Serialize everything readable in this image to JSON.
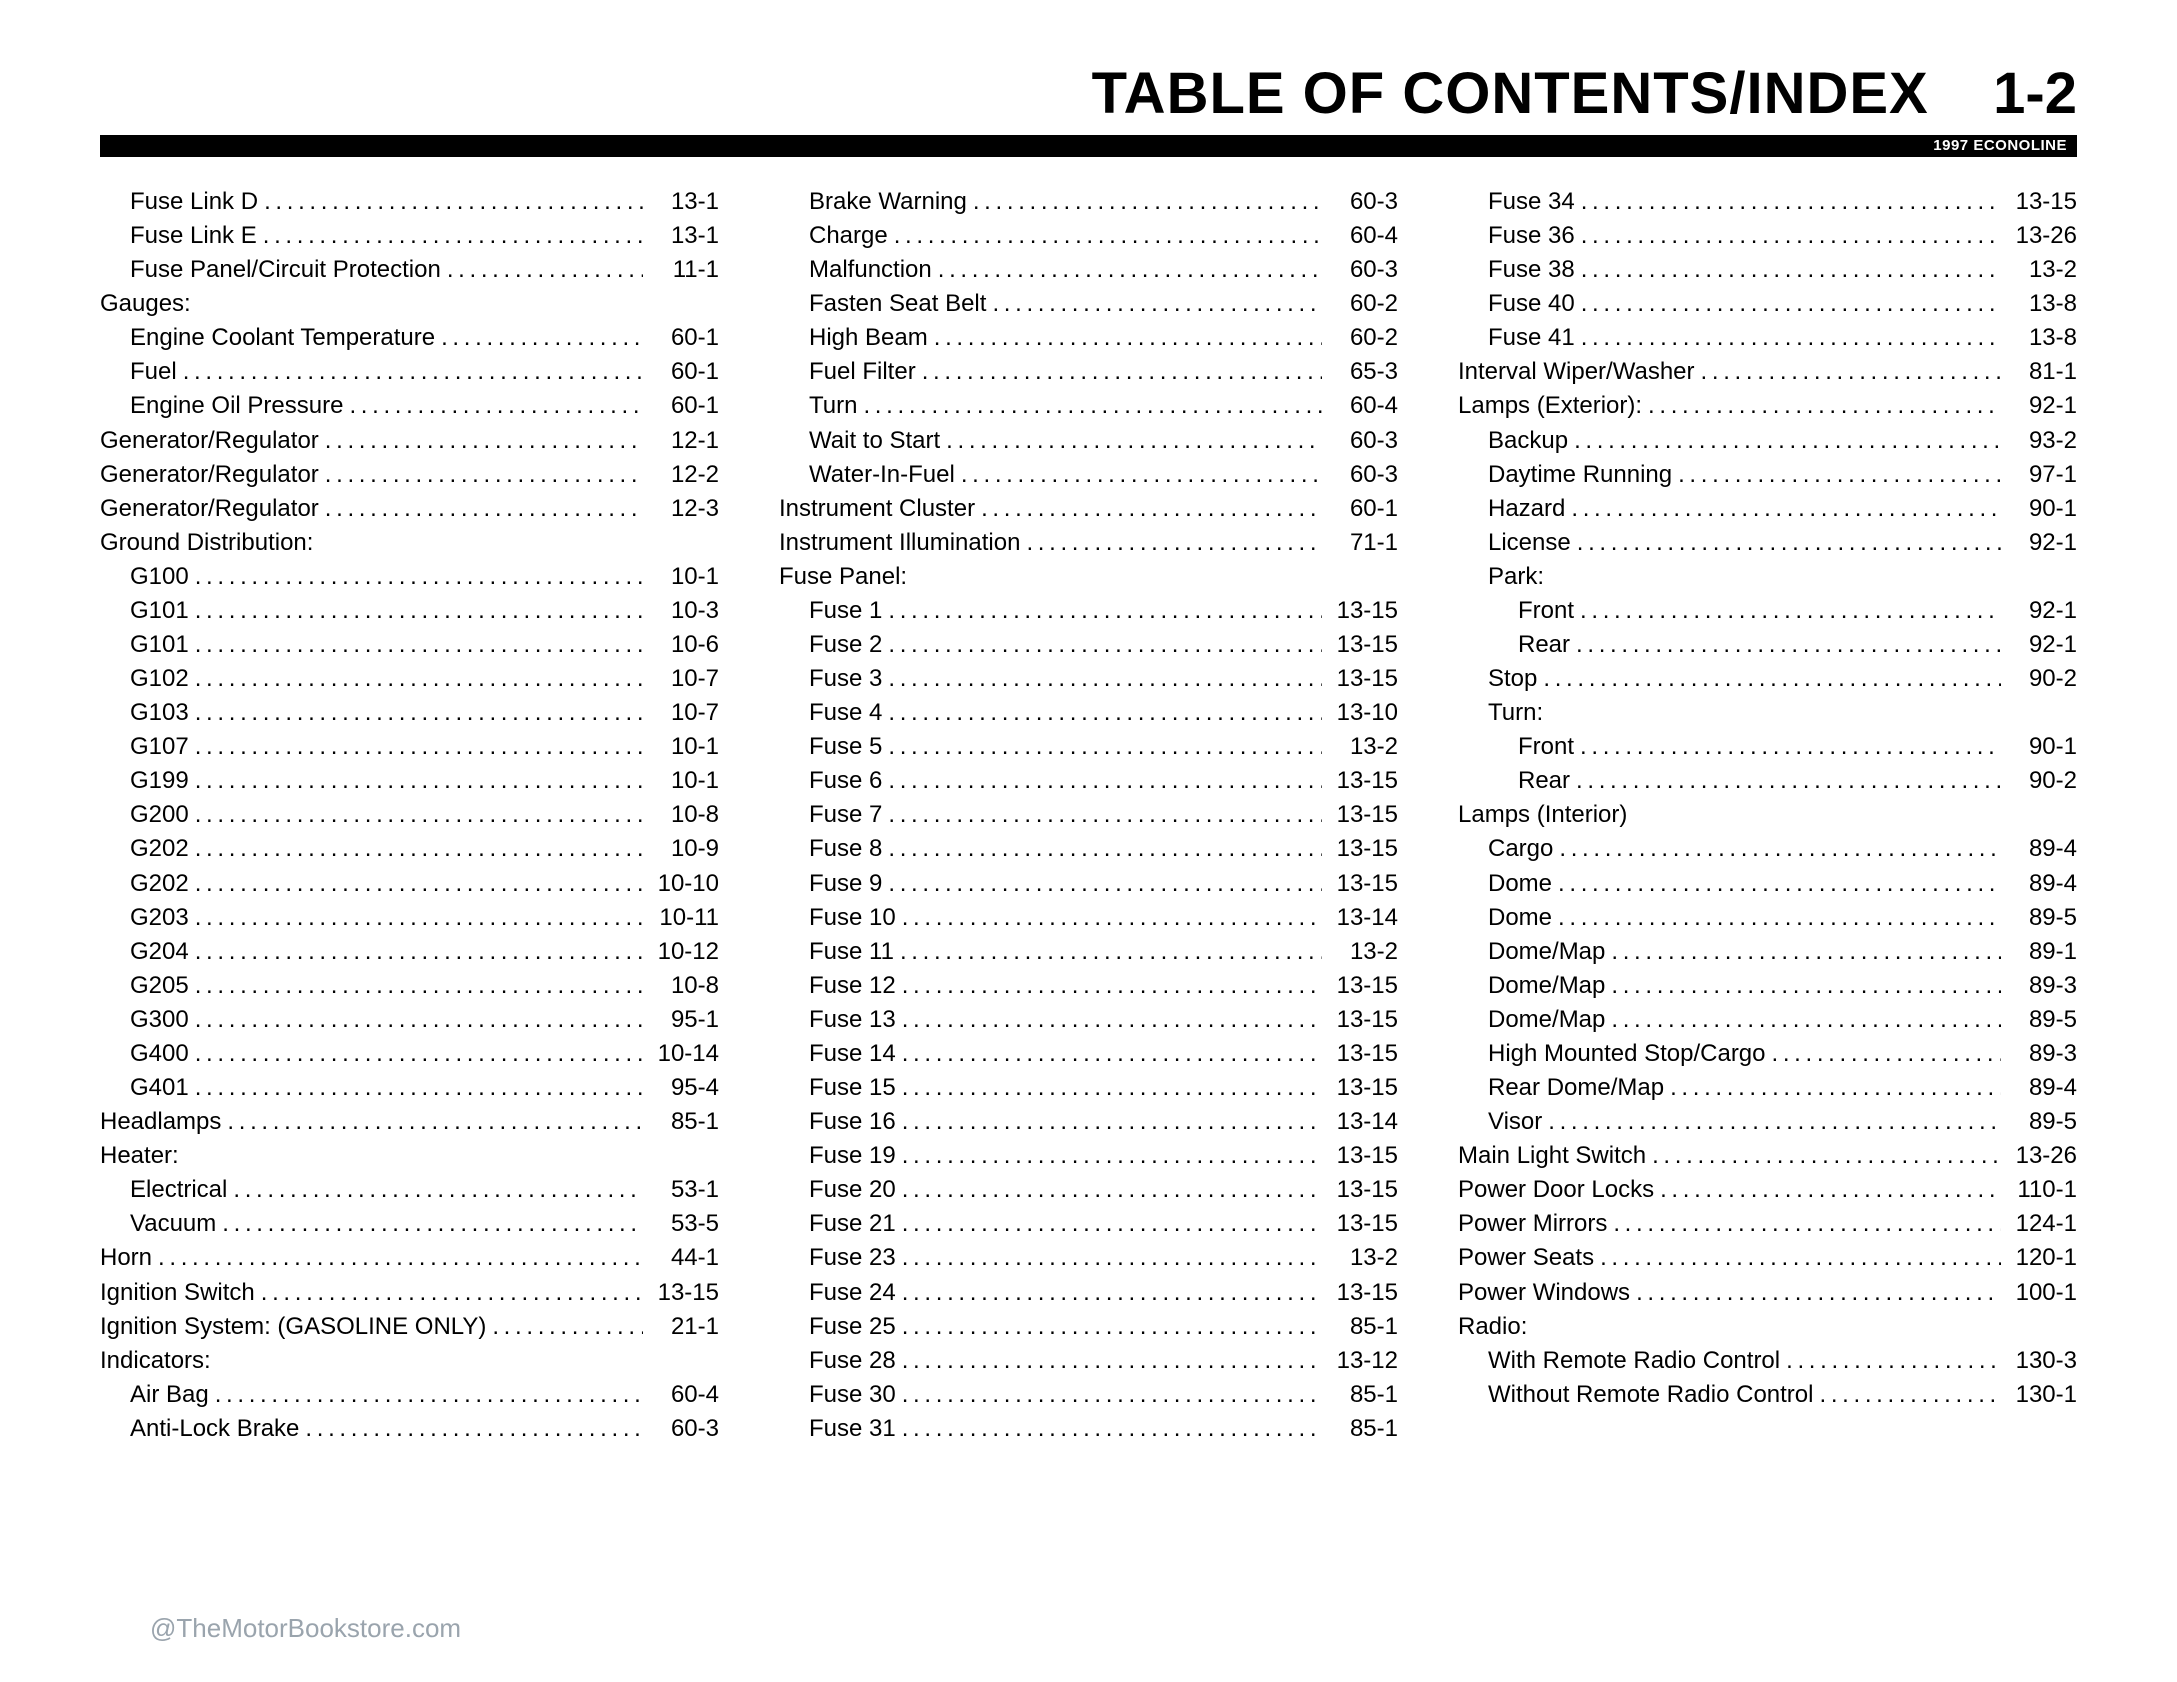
{
  "header": {
    "title": "TABLE OF CONTENTS/INDEX",
    "page": "1-2",
    "sub": "1997 ECONOLINE"
  },
  "watermark": "@TheMotorBookstore.com",
  "columns": [
    [
      {
        "indent": 1,
        "label": "Fuse Link D",
        "page": "13-1"
      },
      {
        "indent": 1,
        "label": "Fuse Link E",
        "page": "13-1"
      },
      {
        "indent": 1,
        "label": "Fuse Panel/Circuit Protection",
        "page": "11-1"
      },
      {
        "indent": 0,
        "label": "Gauges:",
        "page": "",
        "nodots": true
      },
      {
        "indent": 1,
        "label": "Engine Coolant Temperature",
        "page": "60-1"
      },
      {
        "indent": 1,
        "label": "Fuel",
        "page": "60-1"
      },
      {
        "indent": 1,
        "label": "Engine Oil Pressure",
        "page": "60-1"
      },
      {
        "indent": 0,
        "label": "Generator/Regulator",
        "page": "12-1"
      },
      {
        "indent": 0,
        "label": "Generator/Regulator",
        "page": "12-2"
      },
      {
        "indent": 0,
        "label": "Generator/Regulator",
        "page": "12-3"
      },
      {
        "indent": 0,
        "label": "Ground Distribution:",
        "page": "",
        "nodots": true
      },
      {
        "indent": 1,
        "label": "G100",
        "page": "10-1"
      },
      {
        "indent": 1,
        "label": "G101",
        "page": "10-3"
      },
      {
        "indent": 1,
        "label": "G101",
        "page": "10-6"
      },
      {
        "indent": 1,
        "label": "G102",
        "page": "10-7"
      },
      {
        "indent": 1,
        "label": "G103",
        "page": "10-7"
      },
      {
        "indent": 1,
        "label": "G107",
        "page": "10-1"
      },
      {
        "indent": 1,
        "label": "G199",
        "page": "10-1"
      },
      {
        "indent": 1,
        "label": "G200",
        "page": "10-8"
      },
      {
        "indent": 1,
        "label": "G202",
        "page": "10-9"
      },
      {
        "indent": 1,
        "label": "G202",
        "page": "10-10"
      },
      {
        "indent": 1,
        "label": "G203",
        "page": "10-11"
      },
      {
        "indent": 1,
        "label": "G204",
        "page": "10-12"
      },
      {
        "indent": 1,
        "label": "G205",
        "page": "10-8"
      },
      {
        "indent": 1,
        "label": "G300",
        "page": "95-1"
      },
      {
        "indent": 1,
        "label": "G400",
        "page": "10-14"
      },
      {
        "indent": 1,
        "label": "G401",
        "page": "95-4"
      },
      {
        "indent": 0,
        "label": "Headlamps",
        "page": "85-1"
      },
      {
        "indent": 0,
        "label": "Heater:",
        "page": "",
        "nodots": true
      },
      {
        "indent": 1,
        "label": "Electrical",
        "page": "53-1"
      },
      {
        "indent": 1,
        "label": "Vacuum",
        "page": "53-5"
      },
      {
        "indent": 0,
        "label": "Horn",
        "page": "44-1"
      },
      {
        "indent": 0,
        "label": "Ignition Switch",
        "page": "13-15"
      },
      {
        "indent": 0,
        "label": "Ignition System: (GASOLINE ONLY)",
        "page": "21-1"
      },
      {
        "indent": 0,
        "label": "Indicators:",
        "page": "",
        "nodots": true
      },
      {
        "indent": 1,
        "label": "Air Bag",
        "page": "60-4"
      },
      {
        "indent": 1,
        "label": "Anti-Lock Brake",
        "page": "60-3"
      }
    ],
    [
      {
        "indent": 1,
        "label": "Brake Warning",
        "page": "60-3"
      },
      {
        "indent": 1,
        "label": "Charge",
        "page": "60-4"
      },
      {
        "indent": 1,
        "label": "Malfunction",
        "page": "60-3"
      },
      {
        "indent": 1,
        "label": "Fasten Seat Belt",
        "page": "60-2"
      },
      {
        "indent": 1,
        "label": "High Beam",
        "page": "60-2"
      },
      {
        "indent": 1,
        "label": "Fuel Filter",
        "page": "65-3"
      },
      {
        "indent": 1,
        "label": "Turn",
        "page": "60-4"
      },
      {
        "indent": 1,
        "label": "Wait to Start",
        "page": "60-3"
      },
      {
        "indent": 1,
        "label": "Water-In-Fuel",
        "page": "60-3"
      },
      {
        "indent": 0,
        "label": "Instrument Cluster",
        "page": "60-1"
      },
      {
        "indent": 0,
        "label": "Instrument Illumination",
        "page": "71-1"
      },
      {
        "indent": 0,
        "label": "Fuse Panel:",
        "page": "",
        "nodots": true
      },
      {
        "indent": 1,
        "label": "Fuse 1",
        "page": "13-15"
      },
      {
        "indent": 1,
        "label": "Fuse 2",
        "page": "13-15"
      },
      {
        "indent": 1,
        "label": "Fuse 3",
        "page": "13-15"
      },
      {
        "indent": 1,
        "label": "Fuse 4",
        "page": "13-10"
      },
      {
        "indent": 1,
        "label": "Fuse 5",
        "page": "13-2"
      },
      {
        "indent": 1,
        "label": "Fuse 6",
        "page": "13-15"
      },
      {
        "indent": 1,
        "label": "Fuse 7",
        "page": "13-15"
      },
      {
        "indent": 1,
        "label": "Fuse 8",
        "page": "13-15"
      },
      {
        "indent": 1,
        "label": "Fuse 9",
        "page": "13-15"
      },
      {
        "indent": 1,
        "label": "Fuse 10",
        "page": "13-14"
      },
      {
        "indent": 1,
        "label": "Fuse 11",
        "page": "13-2"
      },
      {
        "indent": 1,
        "label": "Fuse 12",
        "page": "13-15"
      },
      {
        "indent": 1,
        "label": "Fuse 13",
        "page": "13-15"
      },
      {
        "indent": 1,
        "label": "Fuse 14",
        "page": "13-15"
      },
      {
        "indent": 1,
        "label": "Fuse 15",
        "page": "13-15"
      },
      {
        "indent": 1,
        "label": "Fuse 16",
        "page": "13-14"
      },
      {
        "indent": 1,
        "label": "Fuse 19",
        "page": "13-15"
      },
      {
        "indent": 1,
        "label": "Fuse 20",
        "page": "13-15"
      },
      {
        "indent": 1,
        "label": "Fuse 21",
        "page": "13-15"
      },
      {
        "indent": 1,
        "label": "Fuse 23",
        "page": "13-2"
      },
      {
        "indent": 1,
        "label": "Fuse 24",
        "page": "13-15"
      },
      {
        "indent": 1,
        "label": "Fuse 25",
        "page": "85-1"
      },
      {
        "indent": 1,
        "label": "Fuse 28",
        "page": "13-12"
      },
      {
        "indent": 1,
        "label": "Fuse 30",
        "page": "85-1"
      },
      {
        "indent": 1,
        "label": "Fuse 31",
        "page": "85-1"
      }
    ],
    [
      {
        "indent": 1,
        "label": "Fuse 34",
        "page": "13-15"
      },
      {
        "indent": 1,
        "label": "Fuse 36",
        "page": "13-26"
      },
      {
        "indent": 1,
        "label": "Fuse 38",
        "page": "13-2"
      },
      {
        "indent": 1,
        "label": "Fuse 40",
        "page": "13-8"
      },
      {
        "indent": 1,
        "label": "Fuse 41",
        "page": "13-8"
      },
      {
        "indent": 0,
        "label": "Interval Wiper/Washer",
        "page": "81-1"
      },
      {
        "indent": 0,
        "label": "Lamps (Exterior):",
        "page": "92-1"
      },
      {
        "indent": 1,
        "label": "Backup",
        "page": "93-2"
      },
      {
        "indent": 1,
        "label": "Daytime Running",
        "page": "97-1"
      },
      {
        "indent": 1,
        "label": "Hazard",
        "page": "90-1"
      },
      {
        "indent": 1,
        "label": "License",
        "page": "92-1"
      },
      {
        "indent": 1,
        "label": "Park:",
        "page": "",
        "nodots": true
      },
      {
        "indent": 2,
        "label": "Front",
        "page": "92-1"
      },
      {
        "indent": 2,
        "label": "Rear",
        "page": "92-1"
      },
      {
        "indent": 1,
        "label": "Stop",
        "page": "90-2"
      },
      {
        "indent": 1,
        "label": "Turn:",
        "page": "",
        "nodots": true
      },
      {
        "indent": 2,
        "label": "Front",
        "page": "90-1"
      },
      {
        "indent": 2,
        "label": "Rear",
        "page": "90-2"
      },
      {
        "indent": 0,
        "label": "Lamps (Interior)",
        "page": "",
        "nodots": true
      },
      {
        "indent": 1,
        "label": "Cargo",
        "page": "89-4"
      },
      {
        "indent": 1,
        "label": "Dome",
        "page": "89-4"
      },
      {
        "indent": 1,
        "label": "Dome",
        "page": "89-5"
      },
      {
        "indent": 1,
        "label": "Dome/Map",
        "page": "89-1"
      },
      {
        "indent": 1,
        "label": "Dome/Map",
        "page": "89-3"
      },
      {
        "indent": 1,
        "label": "Dome/Map",
        "page": "89-5"
      },
      {
        "indent": 1,
        "label": "High Mounted Stop/Cargo",
        "page": "89-3"
      },
      {
        "indent": 1,
        "label": "Rear Dome/Map",
        "page": "89-4"
      },
      {
        "indent": 1,
        "label": "Visor",
        "page": "89-5"
      },
      {
        "indent": 0,
        "label": "Main Light Switch",
        "page": "13-26"
      },
      {
        "indent": 0,
        "label": "Power Door Locks",
        "page": "110-1"
      },
      {
        "indent": 0,
        "label": "Power Mirrors",
        "page": "124-1"
      },
      {
        "indent": 0,
        "label": "Power Seats",
        "page": "120-1"
      },
      {
        "indent": 0,
        "label": "Power Windows",
        "page": "100-1"
      },
      {
        "indent": 0,
        "label": "Radio:",
        "page": "",
        "nodots": true
      },
      {
        "indent": 1,
        "label": "With Remote Radio Control",
        "page": "130-3"
      },
      {
        "indent": 1,
        "label": "Without Remote Radio Control",
        "page": "130-1"
      }
    ]
  ]
}
